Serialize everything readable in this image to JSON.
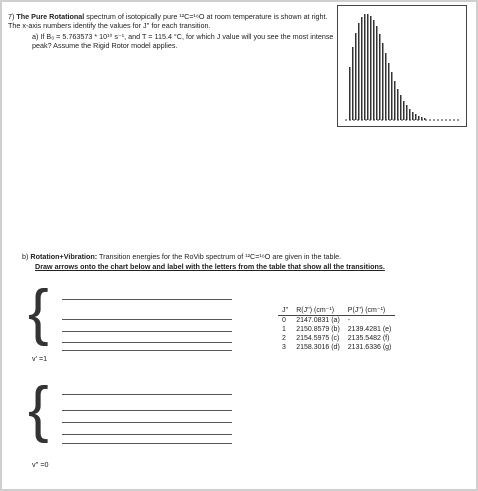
{
  "question": {
    "number": "7)",
    "intro_bold": "The Pure Rotational",
    "intro": "spectrum of isotopically pure ¹²C=¹⁶O at room temperature is shown at right. The x-axis numbers identify the values for J'' for each transition.",
    "part_a_label": "a)",
    "part_a": "If B₀ = 5.763573 * 10¹⁰ s⁻¹, and T = 115.4 °C, for which J value will you see the most intense peak? Assume the Rigid Rotor model applies.",
    "part_b_label": "b)",
    "part_b_bold": "Rotation+Vibration:",
    "part_b": "Transition energies for the RoVib spectrum of ¹²C=¹⁶O are given in the table.",
    "part_b_instruction": "Draw arrows onto the chart below and label with the letters from the table that show all the transitions."
  },
  "table": {
    "header": [
      "J''",
      "R(J'') (cm⁻¹)",
      "P(J'') (cm⁻¹)"
    ],
    "rows": [
      [
        "0",
        "2147.0831 (a)",
        "-"
      ],
      [
        "1",
        "2150.8579 (b)",
        "2139.4281 (e)"
      ],
      [
        "2",
        "2154.5975 (c)",
        "2135.5482 (f)"
      ],
      [
        "3",
        "2158.3016 (d)",
        "2131.6336 (g)"
      ]
    ]
  },
  "levels": {
    "upper": "v' =1",
    "lower": "v'' =0"
  }
}
